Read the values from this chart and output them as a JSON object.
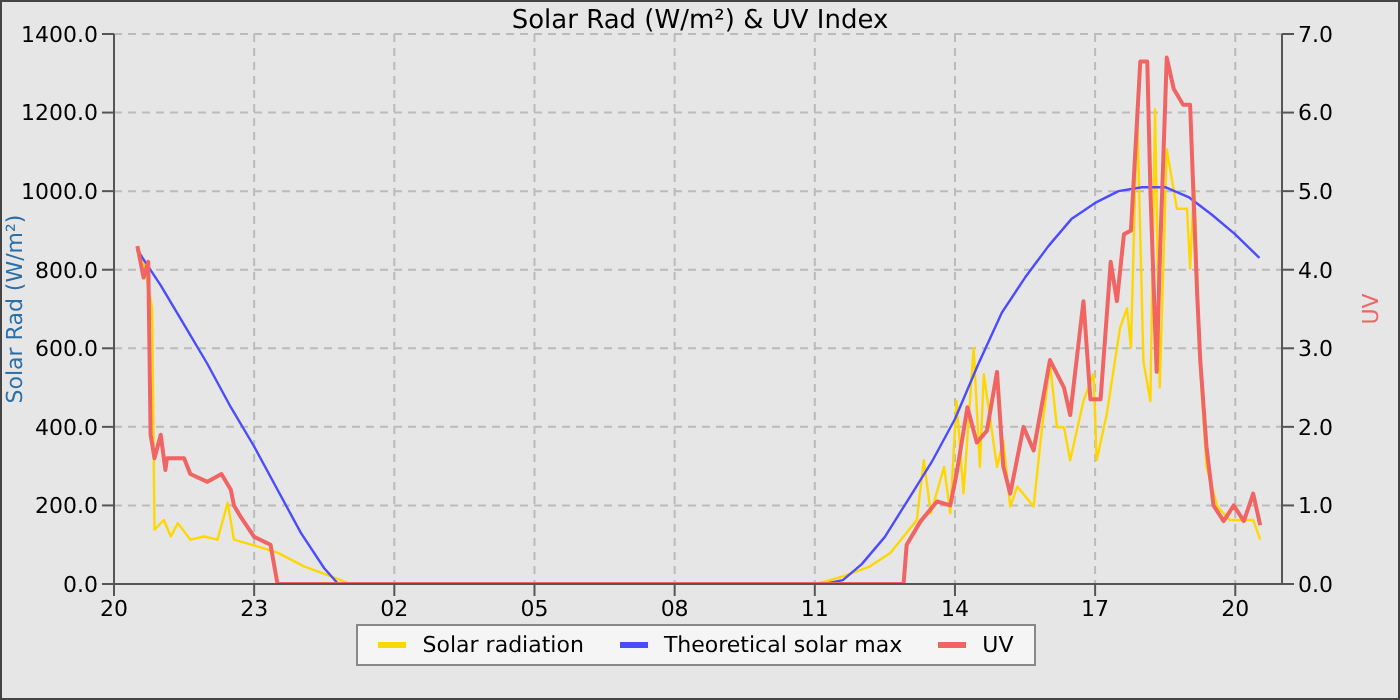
{
  "chart_data": {
    "type": "line",
    "title": "Solar Rad (W/m²) &  UV Index",
    "ylabel": "Solar Rad (W/m²)",
    "y2label": "UV",
    "xlim": [
      "--01-01T20:00",
      "--01-02T21:00"
    ],
    "xticks": [
      {
        "value": "--01-01T20:00",
        "label": "20"
      },
      {
        "value": "--01-01T23:00",
        "label": "23"
      },
      {
        "value": "--01-02T02:00",
        "label": "02"
      },
      {
        "value": "--01-02T05:00",
        "label": "05"
      },
      {
        "value": "--01-02T08:00",
        "label": "08"
      },
      {
        "value": "--01-02T11:00",
        "label": "11"
      },
      {
        "value": "--01-02T14:00",
        "label": "14"
      },
      {
        "value": "--01-02T17:00",
        "label": "17"
      },
      {
        "value": "--01-02T20:00",
        "label": "20"
      }
    ],
    "ylim": [
      0,
      1400
    ],
    "yticks": [
      {
        "value": 0,
        "label": "0.0"
      },
      {
        "value": 200,
        "label": "200.0"
      },
      {
        "value": 400,
        "label": "400.0"
      },
      {
        "value": 600,
        "label": "600.0"
      },
      {
        "value": 800,
        "label": "800.0"
      },
      {
        "value": 1000,
        "label": "1000.0"
      },
      {
        "value": 1200,
        "label": "1200.0"
      },
      {
        "value": 1400,
        "label": "1400.0"
      }
    ],
    "y2lim": [
      0,
      7
    ],
    "y2ticks": [
      {
        "value": 0,
        "label": "0.0"
      },
      {
        "value": 1,
        "label": "1.0"
      },
      {
        "value": 2,
        "label": "2.0"
      },
      {
        "value": 3,
        "label": "3.0"
      },
      {
        "value": 4,
        "label": "4.0"
      },
      {
        "value": 5,
        "label": "5.0"
      },
      {
        "value": 6,
        "label": "6.0"
      },
      {
        "value": 7,
        "label": "7.0"
      }
    ],
    "grid": true,
    "legend": "bottom",
    "marker": "none",
    "series": [
      {
        "name": "Solar radiation",
        "color": "#ffd700",
        "x": [
          "--01-01T20:30",
          "--01-01T20:38",
          "--01-01T20:49",
          "--01-01T20:52",
          "--01-01T21:04",
          "--01-01T21:13",
          "--01-01T21:22",
          "--01-01T21:38",
          "--01-01T21:56",
          "--01-01T22:13",
          "--01-01T22:26",
          "--01-01T22:34",
          "--01-01T23:04",
          "--01-01T23:30",
          "--01-02T00:04",
          "--01-02T00:38",
          "--01-02T01:04",
          "--01-02T11:00",
          "--01-02T11:11",
          "--01-02T11:37",
          "--01-02T12:11",
          "--01-02T12:37",
          "--01-02T12:54",
          "--01-02T13:11",
          "--01-02T13:20",
          "--01-02T13:29",
          "--01-02T13:46",
          "--01-02T13:54",
          "--01-02T14:02",
          "--01-02T14:11",
          "--01-02T14:24",
          "--01-02T14:32",
          "--01-02T14:37",
          "--01-02T14:54",
          "--01-02T15:02",
          "--01-02T15:11",
          "--01-02T15:20",
          "--01-02T15:41",
          "--01-02T15:50",
          "--01-02T16:02",
          "--01-02T16:11",
          "--01-02T16:20",
          "--01-02T16:28",
          "--01-02T16:45",
          "--01-02T16:58",
          "--01-02T17:02",
          "--01-02T17:15",
          "--01-02T17:32",
          "--01-02T17:41",
          "--01-02T17:46",
          "--01-02T17:54",
          "--01-02T18:02",
          "--01-02T18:11",
          "--01-02T18:17",
          "--01-02T18:23",
          "--01-02T18:32",
          "--01-02T18:45",
          "--01-02T18:58",
          "--01-02T19:02",
          "--01-02T19:07",
          "--01-02T19:15",
          "--01-02T19:23",
          "--01-02T19:37",
          "--01-02T19:53",
          "--01-02T20:11",
          "--01-02T20:23",
          "--01-02T20:32"
        ],
        "values": [
          860,
          820,
          702,
          138,
          163,
          121,
          155,
          113,
          121,
          113,
          207,
          113,
          96,
          80,
          45,
          20,
          0,
          0,
          5,
          20,
          45,
          79,
          121,
          163,
          315,
          180,
          298,
          180,
          466,
          231,
          601,
          298,
          534,
          298,
          365,
          197,
          248,
          197,
          365,
          561,
          399,
          399,
          315,
          466,
          535,
          315,
          433,
          652,
          702,
          601,
          1208,
          567,
          466,
          1208,
          500,
          1107,
          955,
          955,
          803,
          1022,
          551,
          298,
          197,
          163,
          163,
          163,
          113
        ]
      },
      {
        "name": "Theoretical solar max",
        "color": "#4b4bff",
        "x": [
          "--01-01T20:30",
          "--01-01T21:00",
          "--01-01T21:30",
          "--01-01T22:00",
          "--01-01T22:30",
          "--01-01T23:00",
          "--01-01T23:30",
          "--01-02T00:00",
          "--01-02T00:30",
          "--01-02T00:48",
          "--01-02T11:12",
          "--01-02T11:36",
          "--01-02T12:00",
          "--01-02T12:30",
          "--01-02T13:00",
          "--01-02T13:30",
          "--01-02T14:00",
          "--01-02T14:30",
          "--01-02T15:00",
          "--01-02T15:30",
          "--01-02T16:00",
          "--01-02T16:30",
          "--01-02T17:00",
          "--01-02T17:30",
          "--01-02T18:00",
          "--01-02T18:30",
          "--01-02T19:00",
          "--01-02T19:30",
          "--01-02T20:00",
          "--01-02T20:31"
        ],
        "values": [
          850,
          760,
          660,
          560,
          450,
          350,
          240,
          130,
          40,
          0,
          0,
          10,
          50,
          120,
          215,
          310,
          420,
          560,
          690,
          780,
          860,
          930,
          970,
          1000,
          1010,
          1010,
          985,
          940,
          890,
          830
        ]
      },
      {
        "name": "UV",
        "color": "#f06464",
        "axis": "y2",
        "x": [
          "--01-01T20:30",
          "--01-01T20:38",
          "--01-01T20:44",
          "--01-01T20:47",
          "--01-01T20:52",
          "--01-01T21:00",
          "--01-01T21:06",
          "--01-01T21:08",
          "--01-01T21:30",
          "--01-01T21:38",
          "--01-01T22:00",
          "--01-01T22:18",
          "--01-01T22:30",
          "--01-01T22:34",
          "--01-01T22:43",
          "--01-01T23:00",
          "--01-01T23:21",
          "--01-01T23:30",
          "--01-02T12:54",
          "--01-02T12:58",
          "--01-02T13:16",
          "--01-02T13:37",
          "--01-02T13:54",
          "--01-02T14:02",
          "--01-02T14:16",
          "--01-02T14:28",
          "--01-02T14:41",
          "--01-02T14:54",
          "--01-02T15:02",
          "--01-02T15:11",
          "--01-02T15:28",
          "--01-02T15:41",
          "--01-02T16:02",
          "--01-02T16:20",
          "--01-02T16:28",
          "--01-02T16:45",
          "--01-02T16:54",
          "--01-02T17:07",
          "--01-02T17:20",
          "--01-02T17:28",
          "--01-02T17:37",
          "--01-02T17:46",
          "--01-02T17:58",
          "--01-02T18:07",
          "--01-02T18:11",
          "--01-02T18:19",
          "--01-02T18:23",
          "--01-02T18:32",
          "--01-02T18:41",
          "--01-02T18:53",
          "--01-02T19:02",
          "--01-02T19:11",
          "--01-02T19:15",
          "--01-02T19:23",
          "--01-02T19:32",
          "--01-02T19:45",
          "--01-02T19:58",
          "--01-02T20:11",
          "--01-02T20:23",
          "--01-02T20:32"
        ],
        "values": [
          4.3,
          3.9,
          4.1,
          1.9,
          1.6,
          1.9,
          1.45,
          1.6,
          1.6,
          1.4,
          1.3,
          1.4,
          1.2,
          1.0,
          0.85,
          0.6,
          0.5,
          0,
          0,
          0.5,
          0.8,
          1.05,
          1.0,
          1.4,
          2.25,
          1.8,
          1.95,
          2.7,
          1.5,
          1.15,
          2.0,
          1.7,
          2.85,
          2.5,
          2.15,
          3.6,
          2.35,
          2.35,
          4.1,
          3.6,
          4.45,
          4.5,
          6.65,
          6.65,
          5.0,
          2.7,
          4.1,
          6.7,
          6.3,
          6.1,
          6.1,
          3.7,
          2.85,
          1.75,
          1.0,
          0.8,
          1.0,
          0.8,
          1.15,
          0.75
        ]
      }
    ]
  }
}
